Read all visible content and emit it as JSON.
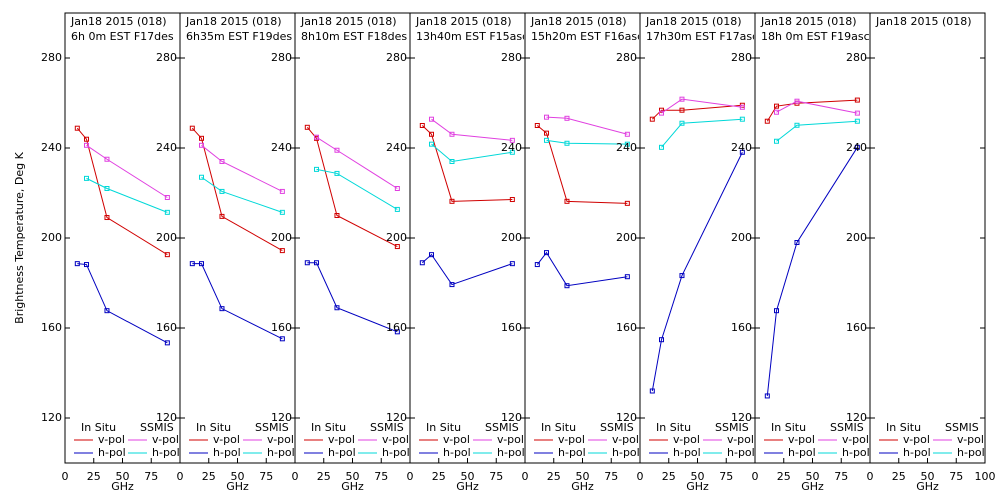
{
  "chart_data": [
    {
      "type": "line",
      "title": "Jan18 2015 (018)",
      "subtitle": "6h 0m EST F17des",
      "xlabel": "GHz",
      "ylabel": "Brightness Temperature, Deg K",
      "x": [
        10.7,
        18.7,
        36.5,
        89
      ],
      "series": [
        {
          "name": "v-pol",
          "group": "In Situ",
          "color": "#d00000",
          "values": [
            248.8,
            243.9,
            209.1,
            192.6
          ]
        },
        {
          "name": "h-pol",
          "group": "In Situ",
          "color": "#0000c0",
          "values": [
            188.6,
            188.2,
            167.7,
            153.4
          ]
        },
        {
          "name": "v-pol",
          "group": "SSMIS",
          "color": "#e040e0",
          "values": [
            null,
            241.2,
            235,
            218
          ]
        },
        {
          "name": "h-pol",
          "group": "SSMIS",
          "color": "#00d8d8",
          "values": [
            null,
            226.5,
            222,
            211.4
          ]
        }
      ],
      "xlim": [
        0,
        100
      ],
      "xticks": [
        0,
        25,
        50,
        75
      ],
      "ylim": [
        100,
        300
      ],
      "yticks": [
        120,
        160,
        200,
        240,
        280
      ]
    },
    {
      "type": "line",
      "title": "Jan18 2015 (018)",
      "subtitle": "6h35m EST F19des",
      "xlabel": "GHz",
      "x": [
        10.7,
        18.7,
        36.5,
        89
      ],
      "series": [
        {
          "name": "v-pol",
          "group": "In Situ",
          "color": "#d00000",
          "values": [
            248.8,
            244.3,
            209.6,
            194.4
          ]
        },
        {
          "name": "h-pol",
          "group": "In Situ",
          "color": "#0000c0",
          "values": [
            188.6,
            188.6,
            168.6,
            155.2
          ]
        },
        {
          "name": "v-pol",
          "group": "SSMIS",
          "color": "#e040e0",
          "values": [
            null,
            241.2,
            234,
            220.7
          ]
        },
        {
          "name": "h-pol",
          "group": "SSMIS",
          "color": "#00d8d8",
          "values": [
            null,
            227,
            220.7,
            211.4
          ]
        }
      ],
      "xlim": [
        0,
        100
      ],
      "xticks": [
        0,
        25,
        50,
        75
      ],
      "ylim": [
        100,
        300
      ],
      "yticks": [
        120,
        160,
        200,
        240,
        280
      ]
    },
    {
      "type": "line",
      "title": "Jan18 2015 (018)",
      "subtitle": "8h10m EST F18des",
      "xlabel": "GHz",
      "x": [
        10.7,
        18.7,
        36.5,
        89
      ],
      "series": [
        {
          "name": "v-pol",
          "group": "In Situ",
          "color": "#d00000",
          "values": [
            249.2,
            244.3,
            210,
            196.2
          ]
        },
        {
          "name": "h-pol",
          "group": "In Situ",
          "color": "#0000c0",
          "values": [
            189,
            189,
            169,
            158.3
          ]
        },
        {
          "name": "v-pol",
          "group": "SSMIS",
          "color": "#e040e0",
          "values": [
            null,
            244.8,
            239,
            222
          ]
        },
        {
          "name": "h-pol",
          "group": "SSMIS",
          "color": "#00d8d8",
          "values": [
            null,
            230.5,
            228.7,
            212.7
          ]
        }
      ],
      "xlim": [
        0,
        100
      ],
      "xticks": [
        0,
        25,
        50,
        75
      ],
      "ylim": [
        100,
        300
      ],
      "yticks": [
        120,
        160,
        200,
        240,
        280
      ]
    },
    {
      "type": "line",
      "title": "Jan18 2015 (018)",
      "subtitle": "13h40m EST F15asc",
      "xlabel": "GHz",
      "x": [
        10.7,
        18.7,
        36.5,
        89
      ],
      "series": [
        {
          "name": "v-pol",
          "group": "In Situ",
          "color": "#d00000",
          "values": [
            250,
            246.1,
            216.3,
            217.1
          ]
        },
        {
          "name": "h-pol",
          "group": "In Situ",
          "color": "#0000c0",
          "values": [
            189,
            192.6,
            179.3,
            188.6
          ]
        },
        {
          "name": "v-pol",
          "group": "SSMIS",
          "color": "#e040e0",
          "values": [
            null,
            252.8,
            246.1,
            243.4
          ]
        },
        {
          "name": "h-pol",
          "group": "SSMIS",
          "color": "#00d8d8",
          "values": [
            null,
            241.7,
            234,
            238.1
          ]
        }
      ],
      "xlim": [
        0,
        100
      ],
      "xticks": [
        0,
        25,
        50,
        75
      ],
      "ylim": [
        100,
        300
      ],
      "yticks": [
        120,
        160,
        200,
        240,
        280
      ]
    },
    {
      "type": "line",
      "title": "Jan18 2015 (018)",
      "subtitle": "15h20m EST F16asc",
      "xlabel": "GHz",
      "x": [
        10.7,
        18.7,
        36.5,
        89
      ],
      "series": [
        {
          "name": "v-pol",
          "group": "In Situ",
          "color": "#d00000",
          "values": [
            250,
            246.6,
            216.3,
            215.4
          ]
        },
        {
          "name": "h-pol",
          "group": "In Situ",
          "color": "#0000c0",
          "values": [
            188.2,
            193.5,
            178.8,
            182.8
          ]
        },
        {
          "name": "v-pol",
          "group": "SSMIS",
          "color": "#e040e0",
          "values": [
            null,
            253.7,
            253.2,
            246.1
          ]
        },
        {
          "name": "h-pol",
          "group": "SSMIS",
          "color": "#00d8d8",
          "values": [
            null,
            243.4,
            242.1,
            241.7
          ]
        }
      ],
      "xlim": [
        0,
        100
      ],
      "xticks": [
        0,
        25,
        50,
        75
      ],
      "ylim": [
        100,
        300
      ],
      "yticks": [
        120,
        160,
        200,
        240,
        280
      ]
    },
    {
      "type": "line",
      "title": "Jan18 2015 (018)",
      "subtitle": "17h30m EST F17asc",
      "xlabel": "GHz",
      "x": [
        10.7,
        18.7,
        36.5,
        89
      ],
      "series": [
        {
          "name": "v-pol",
          "group": "In Situ",
          "color": "#d00000",
          "values": [
            252.8,
            256.8,
            256.8,
            259
          ]
        },
        {
          "name": "h-pol",
          "group": "In Situ",
          "color": "#0000c0",
          "values": [
            132,
            154.8,
            183.3,
            238.1
          ]
        },
        {
          "name": "v-pol",
          "group": "SSMIS",
          "color": "#e040e0",
          "values": [
            null,
            255.5,
            261.7,
            258.1
          ]
        },
        {
          "name": "h-pol",
          "group": "SSMIS",
          "color": "#00d8d8",
          "values": [
            null,
            240.3,
            251,
            252.8
          ]
        }
      ],
      "xlim": [
        0,
        100
      ],
      "xticks": [
        0,
        25,
        50,
        75
      ],
      "ylim": [
        100,
        300
      ],
      "yticks": [
        120,
        160,
        200,
        240,
        280
      ]
    },
    {
      "type": "line",
      "title": "Jan18 2015 (018)",
      "subtitle": "18h 0m EST F19asc",
      "xlabel": "GHz",
      "x": [
        10.7,
        18.7,
        36.5,
        89
      ],
      "series": [
        {
          "name": "v-pol",
          "group": "In Situ",
          "color": "#d00000",
          "values": [
            251.9,
            258.6,
            259.9,
            261.3
          ]
        },
        {
          "name": "h-pol",
          "group": "In Situ",
          "color": "#0000c0",
          "values": [
            129.8,
            167.7,
            198,
            240.3
          ]
        },
        {
          "name": "v-pol",
          "group": "SSMIS",
          "color": "#e040e0",
          "values": [
            null,
            255.9,
            260.8,
            255.5
          ]
        },
        {
          "name": "h-pol",
          "group": "SSMIS",
          "color": "#00d8d8",
          "values": [
            null,
            243,
            250.1,
            251.9
          ]
        }
      ],
      "xlim": [
        0,
        100
      ],
      "xticks": [
        0,
        25,
        50,
        75
      ],
      "ylim": [
        100,
        300
      ],
      "yticks": [
        120,
        160,
        200,
        240,
        280
      ]
    },
    {
      "type": "line",
      "title": "Jan18 2015 (018)",
      "xlabel": "GHz",
      "x": [
        10.7,
        18.7,
        36.5,
        89
      ],
      "series": [
        {
          "name": "v-pol",
          "group": "In Situ",
          "color": "#d00000",
          "values": [
            null,
            null,
            null,
            null
          ]
        },
        {
          "name": "h-pol",
          "group": "In Situ",
          "color": "#0000c0",
          "values": [
            null,
            null,
            null,
            null
          ]
        },
        {
          "name": "v-pol",
          "group": "SSMIS",
          "color": "#e040e0",
          "values": [
            null,
            null,
            null,
            null
          ]
        },
        {
          "name": "h-pol",
          "group": "SSMIS",
          "color": "#00d8d8",
          "values": [
            null,
            null,
            null,
            null
          ]
        }
      ],
      "xlim": [
        0,
        100
      ],
      "xticks": [
        0,
        25,
        50,
        75,
        100
      ],
      "ylim": [
        100,
        300
      ],
      "yticks": [
        120,
        160,
        200,
        240,
        280
      ]
    }
  ]
}
